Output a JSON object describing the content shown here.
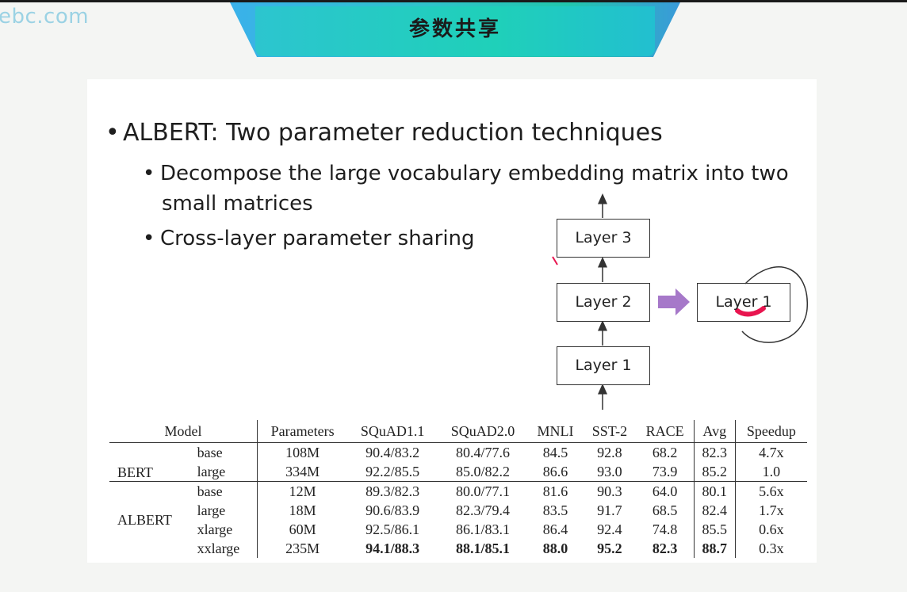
{
  "watermark": "ebc.com",
  "banner": {
    "title": "参数共享"
  },
  "bullets": {
    "main": "ALBERT: Two parameter reduction techniques",
    "sub1_line1": "Decompose the large vocabulary embedding matrix into two",
    "sub1_line2": "small matrices",
    "sub2": "Cross-layer parameter sharing",
    "dot": "•"
  },
  "diagram": {
    "layers": [
      "Layer 3",
      "Layer 2",
      "Layer 1"
    ],
    "shared_layer": "Layer 1",
    "arrow_color": "#a678c9",
    "annotation_color": "#e8154f"
  },
  "table": {
    "headers": [
      "Model",
      "Parameters",
      "SQuAD1.1",
      "SQuAD2.0",
      "MNLI",
      "SST-2",
      "RACE",
      "Avg",
      "Speedup"
    ],
    "groups": [
      {
        "model": "BERT",
        "rows": [
          {
            "variant": "base",
            "cells": [
              "108M",
              "90.4/83.2",
              "80.4/77.6",
              "84.5",
              "92.8",
              "68.2",
              "82.3",
              "4.7x"
            ]
          },
          {
            "variant": "large",
            "cells": [
              "334M",
              "92.2/85.5",
              "85.0/82.2",
              "86.6",
              "93.0",
              "73.9",
              "85.2",
              "1.0"
            ]
          }
        ]
      },
      {
        "model": "ALBERT",
        "rows": [
          {
            "variant": "base",
            "cells": [
              "12M",
              "89.3/82.3",
              "80.0/77.1",
              "81.6",
              "90.3",
              "64.0",
              "80.1",
              "5.6x"
            ]
          },
          {
            "variant": "large",
            "cells": [
              "18M",
              "90.6/83.9",
              "82.3/79.4",
              "83.5",
              "91.7",
              "68.5",
              "82.4",
              "1.7x"
            ]
          },
          {
            "variant": "xlarge",
            "cells": [
              "60M",
              "92.5/86.1",
              "86.1/83.1",
              "86.4",
              "92.4",
              "74.8",
              "85.5",
              "0.6x"
            ]
          },
          {
            "variant": "xxlarge",
            "cells": [
              "235M",
              "94.1/88.3",
              "88.1/85.1",
              "88.0",
              "95.2",
              "82.3",
              "88.7",
              "0.3x"
            ]
          }
        ]
      }
    ]
  }
}
